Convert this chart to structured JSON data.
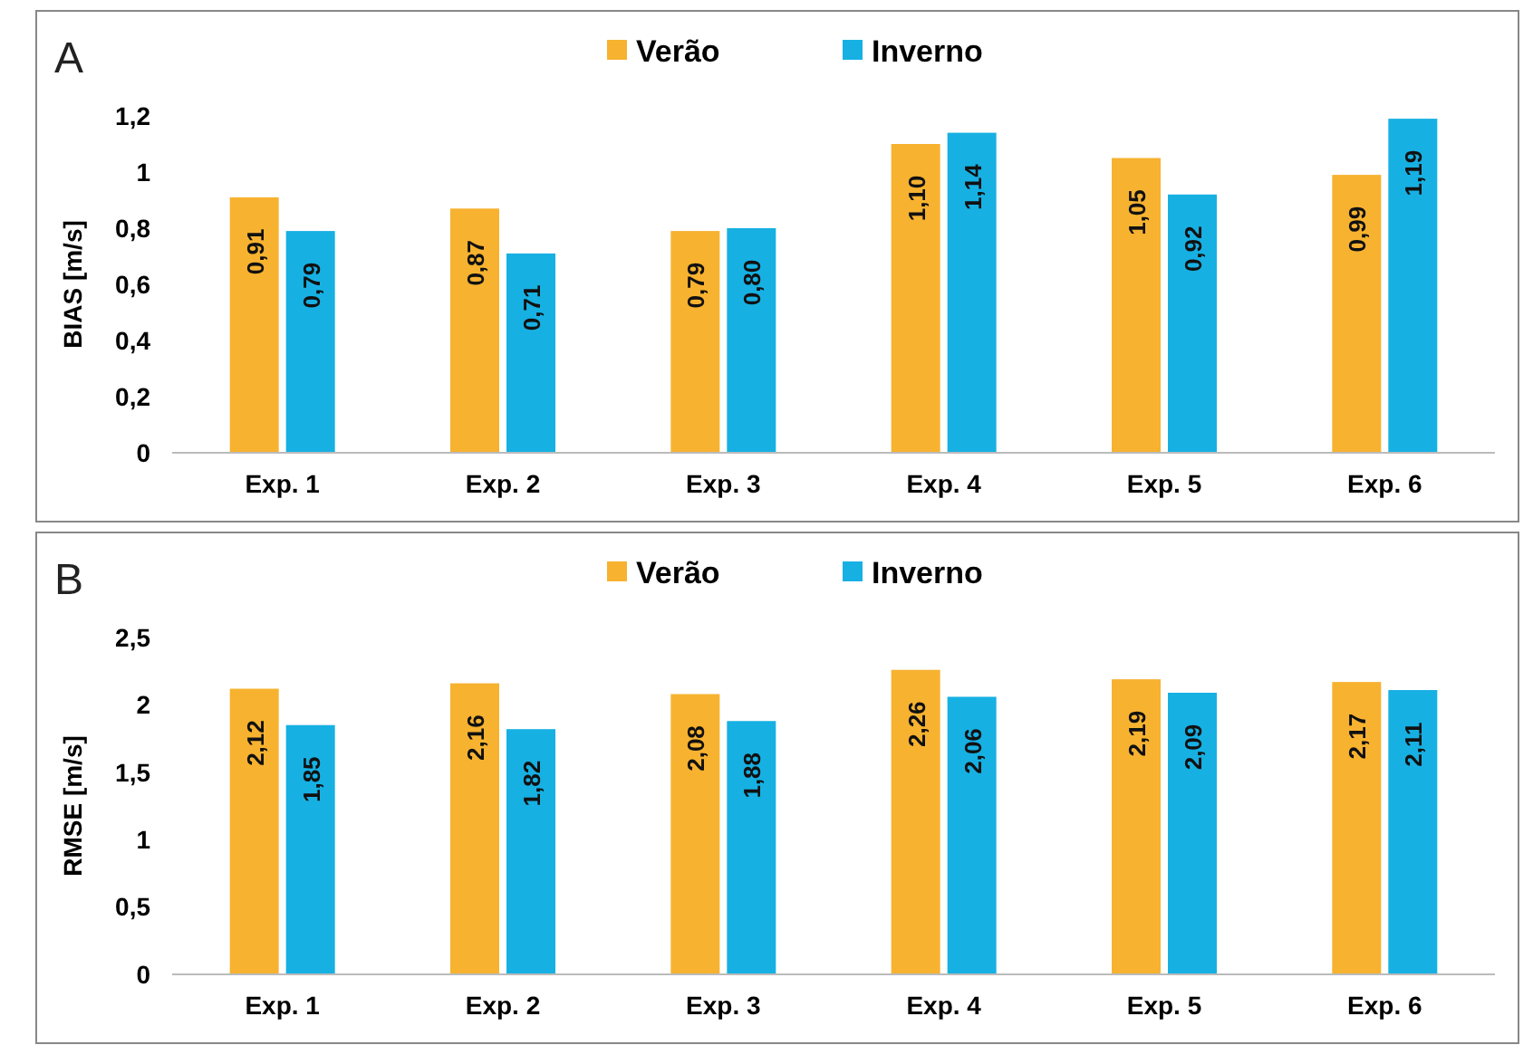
{
  "chart_data": [
    {
      "type": "bar",
      "ylabel": "BIAS [m/s]",
      "annotations": [
        "A"
      ],
      "categories": [
        "Exp. 1",
        "Exp. 2",
        "Exp. 3",
        "Exp. 4",
        "Exp. 5",
        "Exp. 6"
      ],
      "series": [
        {
          "name": "Verão",
          "color": "#f7b230",
          "values": [
            0.91,
            0.87,
            0.79,
            1.1,
            1.05,
            0.99
          ],
          "value_labels": [
            "0,91",
            "0,87",
            "0,79",
            "1,10",
            "1,05",
            "0,99"
          ]
        },
        {
          "name": "Inverno",
          "color": "#17b0e3",
          "values": [
            0.79,
            0.71,
            0.8,
            1.14,
            0.92,
            1.19
          ],
          "value_labels": [
            "0,79",
            "0,71",
            "0,80",
            "1,14",
            "0,92",
            "1,19"
          ]
        }
      ],
      "ylim": [
        0,
        1.2
      ],
      "yticks": [
        0,
        {
          "value": 0.2,
          "label": "0,2"
        },
        {
          "value": 0.4,
          "label": "0,4"
        },
        {
          "value": 0.6,
          "label": "0,6"
        },
        {
          "value": 0.8,
          "label": "0,8"
        },
        1,
        {
          "value": 1.2,
          "label": "1,2"
        }
      ],
      "grid": false,
      "legend": "top"
    },
    {
      "type": "bar",
      "ylabel": "RMSE [m/s]",
      "annotations": [
        "B"
      ],
      "categories": [
        "Exp. 1",
        "Exp. 2",
        "Exp. 3",
        "Exp. 4",
        "Exp. 5",
        "Exp. 6"
      ],
      "series": [
        {
          "name": "Verão",
          "color": "#f7b230",
          "values": [
            2.12,
            2.16,
            2.08,
            2.26,
            2.19,
            2.17
          ],
          "value_labels": [
            "2,12",
            "2,16",
            "2,08",
            "2,26",
            "2,19",
            "2,17"
          ]
        },
        {
          "name": "Inverno",
          "color": "#17b0e3",
          "values": [
            1.85,
            1.82,
            1.88,
            2.06,
            2.09,
            2.11
          ],
          "value_labels": [
            "1,85",
            "1,82",
            "1,88",
            "2,06",
            "2,09",
            "2,11"
          ]
        }
      ],
      "ylim": [
        0,
        2.5
      ],
      "yticks": [
        0,
        {
          "value": 0.5,
          "label": "0,5"
        },
        1,
        {
          "value": 1.5,
          "label": "1,5"
        },
        2,
        {
          "value": 2.5,
          "label": "2,5"
        }
      ],
      "grid": false,
      "legend": "top"
    }
  ]
}
